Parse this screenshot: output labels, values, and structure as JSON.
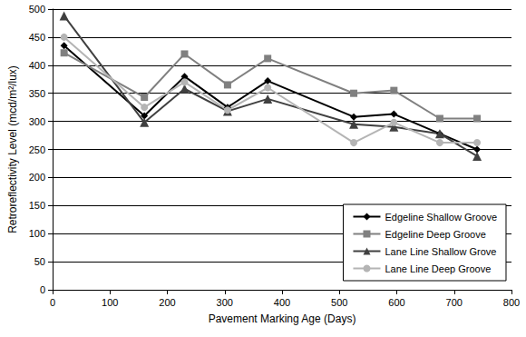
{
  "chart_data": {
    "type": "line",
    "x_label": "Pavement Marking Age (Days)",
    "y_label": "Retroreflectivity Level (mcd/m²/lux)",
    "x": [
      20,
      160,
      230,
      305,
      375,
      525,
      595,
      675,
      740
    ],
    "series": [
      {
        "name": "Edgeline Shallow Groove",
        "color": "#000000",
        "marker": "diamond",
        "values": [
          435,
          310,
          380,
          325,
          372,
          308,
          313,
          278,
          250
        ]
      },
      {
        "name": "Edgeline Deep Groove",
        "color": "#808080",
        "marker": "square",
        "values": [
          422,
          343,
          420,
          365,
          412,
          350,
          355,
          305,
          305
        ]
      },
      {
        "name": "Lane Line Shallow Grove",
        "color": "#404040",
        "marker": "triangle",
        "values": [
          488,
          298,
          358,
          318,
          340,
          295,
          290,
          278,
          238
        ]
      },
      {
        "name": "Lane Line Deep Groove",
        "color": "#b4b4b4",
        "marker": "circle",
        "values": [
          450,
          325,
          370,
          320,
          360,
          262,
          298,
          262,
          262
        ]
      }
    ],
    "xlim": [
      0,
      800
    ],
    "xticks": [
      0,
      100,
      200,
      300,
      400,
      500,
      600,
      700,
      800
    ],
    "ylim": [
      0,
      500
    ],
    "yticks": [
      0,
      50,
      100,
      150,
      200,
      250,
      300,
      350,
      400,
      450,
      500
    ],
    "grid": true,
    "legend": "lower right"
  }
}
